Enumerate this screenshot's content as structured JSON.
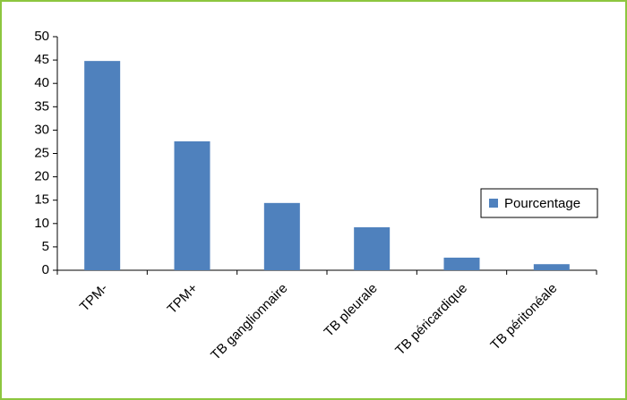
{
  "chart_data": {
    "type": "bar",
    "categories": [
      "TPM-",
      "TPM+",
      "TB ganglionnaire",
      "TB pleurale",
      "TB péricardique",
      "TB péritonéale"
    ],
    "series": [
      {
        "name": "Pourcentage",
        "color": "#4f81bd",
        "values": [
          44.8,
          27.6,
          14.4,
          9.2,
          2.7,
          1.3
        ]
      }
    ],
    "ylim": [
      0,
      50
    ],
    "yticks": [
      0,
      5,
      10,
      15,
      20,
      25,
      30,
      35,
      40,
      45,
      50
    ],
    "grid": false,
    "legend": "right"
  }
}
